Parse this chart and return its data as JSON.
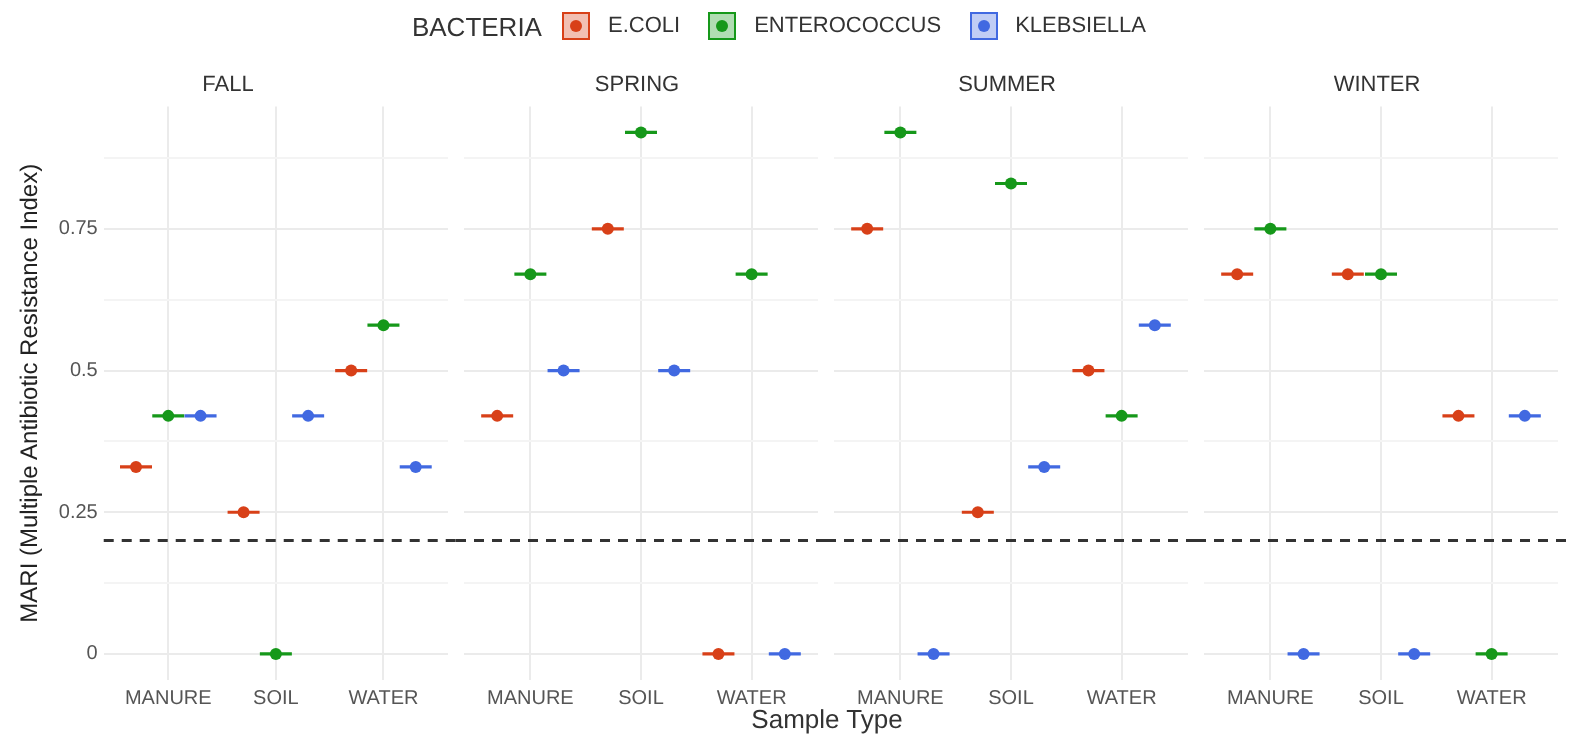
{
  "chart_data": [
    {
      "type": "scatter",
      "title": "FALL",
      "ylabel": "MARI (Multiple Antibiotic Resistance Index)",
      "legend_title": "BACTERIA",
      "legend": "top",
      "grid": true,
      "marker": "circle",
      "categories": [
        "MANURE",
        "SOIL",
        "WATER"
      ],
      "ylim": [
        -0.046,
        0.966
      ],
      "yticks": [
        0,
        {
          "value": 0.125,
          "label": null
        },
        0.25,
        {
          "value": 0.375,
          "label": null
        },
        0.5,
        {
          "value": 0.625,
          "label": null
        },
        0.75,
        {
          "value": 0.875,
          "label": null
        }
      ],
      "ref_lines": [
        {
          "axis": "y",
          "value": 0.2,
          "color": "#333333",
          "line_style": "dashed"
        }
      ],
      "series": [
        {
          "name": "E.COLI",
          "color": "#d84018",
          "values": [
            0.33,
            0.25,
            0.5
          ],
          "errors": [
            0,
            0,
            0
          ]
        },
        {
          "name": "ENTEROCOCCUS",
          "color": "#16981a",
          "values": [
            0.42,
            0,
            0.58
          ],
          "errors": [
            0,
            0,
            0
          ]
        },
        {
          "name": "KLEBSIELLA",
          "color": "#4169e1",
          "values": [
            0.42,
            0.42,
            0.33
          ],
          "errors": [
            0,
            0,
            0
          ]
        }
      ]
    },
    {
      "type": "scatter",
      "title": "SPRING",
      "grid": true,
      "marker": "circle",
      "tick_labels": "x",
      "categories": [
        "MANURE",
        "SOIL",
        "WATER"
      ],
      "ylim": [
        -0.046,
        0.966
      ],
      "yticks": [
        0,
        {
          "value": 0.125,
          "label": null
        },
        0.25,
        {
          "value": 0.375,
          "label": null
        },
        0.5,
        {
          "value": 0.625,
          "label": null
        },
        0.75,
        {
          "value": 0.875,
          "label": null
        }
      ],
      "ref_lines": [
        {
          "axis": "y",
          "value": 0.2,
          "color": "#333333",
          "line_style": "dashed"
        }
      ],
      "series": [
        {
          "color": "#d84018",
          "values": [
            0.42,
            0.75,
            0
          ],
          "errors": [
            0,
            0,
            0
          ]
        },
        {
          "color": "#16981a",
          "values": [
            0.67,
            0.92,
            0.67
          ],
          "errors": [
            0,
            0,
            0
          ]
        },
        {
          "color": "#4169e1",
          "values": [
            0.5,
            0.5,
            0
          ],
          "errors": [
            0,
            0,
            0
          ]
        }
      ]
    },
    {
      "type": "scatter",
      "title": "SUMMER",
      "xlabel": "Sample Type",
      "grid": true,
      "marker": "circle",
      "tick_labels": "x",
      "categories": [
        "MANURE",
        "SOIL",
        "WATER"
      ],
      "ylim": [
        -0.046,
        0.966
      ],
      "yticks": [
        0,
        {
          "value": 0.125,
          "label": null
        },
        0.25,
        {
          "value": 0.375,
          "label": null
        },
        0.5,
        {
          "value": 0.625,
          "label": null
        },
        0.75,
        {
          "value": 0.875,
          "label": null
        }
      ],
      "ref_lines": [
        {
          "axis": "y",
          "value": 0.2,
          "color": "#333333",
          "line_style": "dashed"
        }
      ],
      "series": [
        {
          "color": "#d84018",
          "values": [
            0.75,
            0.25,
            0.5
          ],
          "errors": [
            0,
            0,
            0
          ]
        },
        {
          "color": "#16981a",
          "values": [
            0.92,
            0.83,
            0.42
          ],
          "errors": [
            0,
            0,
            0
          ]
        },
        {
          "color": "#4169e1",
          "values": [
            0,
            0.33,
            0.58
          ],
          "errors": [
            0,
            0,
            0
          ]
        }
      ]
    },
    {
      "type": "scatter",
      "title": "WINTER",
      "grid": true,
      "marker": "circle",
      "tick_labels": "x",
      "categories": [
        "MANURE",
        "SOIL",
        "WATER"
      ],
      "ylim": [
        -0.046,
        0.966
      ],
      "yticks": [
        0,
        {
          "value": 0.125,
          "label": null
        },
        0.25,
        {
          "value": 0.375,
          "label": null
        },
        0.5,
        {
          "value": 0.625,
          "label": null
        },
        0.75,
        {
          "value": 0.875,
          "label": null
        }
      ],
      "ref_lines": [
        {
          "axis": "y",
          "value": 0.2,
          "color": "#333333",
          "line_style": "dashed"
        }
      ],
      "series": [
        {
          "color": "#d84018",
          "values": [
            0.67,
            0.67,
            0.42
          ],
          "errors": [
            0,
            0,
            0
          ]
        },
        {
          "color": "#16981a",
          "values": [
            0.75,
            0.67,
            0
          ],
          "errors": [
            0,
            0,
            0
          ]
        },
        {
          "color": "#4169e1",
          "values": [
            0,
            0,
            0.42
          ],
          "errors": [
            0,
            0,
            0
          ]
        }
      ]
    }
  ]
}
